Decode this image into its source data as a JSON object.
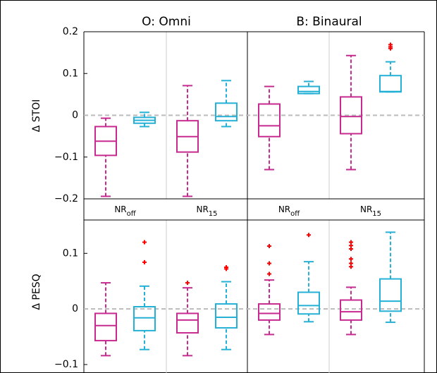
{
  "chart_data": [
    {
      "type": "box",
      "titles": [
        "O: Omni",
        "B: Binaural"
      ],
      "y_label": "Δ STOI",
      "categories": [
        {
          "text": "NR",
          "sub": "off"
        },
        {
          "text": "NR",
          "sub": "15"
        },
        {
          "text": "NR",
          "sub": "off"
        },
        {
          "text": "NR",
          "sub": "15"
        }
      ],
      "ylim": [
        -0.2,
        0.2
      ],
      "yticks": [
        {
          "value": -0.2,
          "label": "−0.2"
        },
        {
          "value": -0.1,
          "label": "−0.1"
        },
        0,
        0.1,
        0.2
      ],
      "series": [
        {
          "color": "#c72a8e",
          "boxes": [
            {
              "low": -0.194,
              "q1": -0.096,
              "median": -0.062,
              "q3": -0.027,
              "high": -0.007,
              "outliers": []
            },
            {
              "low": -0.194,
              "q1": -0.088,
              "median": -0.051,
              "q3": -0.013,
              "high": 0.071,
              "outliers": []
            },
            {
              "low": -0.13,
              "q1": -0.051,
              "median": -0.025,
              "q3": 0.027,
              "high": 0.069,
              "outliers": []
            },
            {
              "low": -0.13,
              "q1": -0.044,
              "median": -0.003,
              "q3": 0.044,
              "high": 0.143,
              "outliers": []
            }
          ]
        },
        {
          "color": "#25b1d6",
          "boxes": [
            {
              "low": -0.027,
              "q1": -0.019,
              "median": -0.012,
              "q3": -0.005,
              "high": 0.007,
              "outliers": []
            },
            {
              "low": -0.027,
              "q1": -0.013,
              "median": -0.003,
              "q3": 0.029,
              "high": 0.083,
              "outliers": []
            },
            {
              "low": 0.052,
              "q1": 0.052,
              "median": 0.057,
              "q3": 0.069,
              "high": 0.081,
              "outliers": []
            },
            {
              "low": 0.056,
              "q1": 0.056,
              "median": 0.057,
              "q3": 0.095,
              "high": 0.128,
              "outliers": [
                0.169,
                0.164,
                0.16
              ]
            }
          ]
        }
      ]
    },
    {
      "type": "box",
      "y_label": "Δ PESQ",
      "ylim": [
        -0.1,
        0.16
      ],
      "yticks": [
        {
          "value": -0.1,
          "label": "−0.1"
        },
        0,
        0.1
      ],
      "series": [
        {
          "color": "#c72a8e",
          "boxes": [
            {
              "low": -0.084,
              "q1": -0.057,
              "median": -0.03,
              "q3": -0.008,
              "high": 0.047,
              "outliers": []
            },
            {
              "low": -0.084,
              "q1": -0.043,
              "median": -0.02,
              "q3": -0.008,
              "high": 0.038,
              "outliers": [
                0.047
              ]
            },
            {
              "low": -0.046,
              "q1": -0.02,
              "median": -0.008,
              "q3": 0.009,
              "high": 0.052,
              "outliers": [
                0.063,
                0.082,
                0.113
              ]
            },
            {
              "low": -0.046,
              "q1": -0.02,
              "median": -0.005,
              "q3": 0.016,
              "high": 0.039,
              "outliers": [
                0.12,
                0.114,
                0.108,
                0.09,
                0.082,
                0.076
              ]
            }
          ]
        },
        {
          "color": "#25b1d6",
          "boxes": [
            {
              "low": -0.073,
              "q1": -0.039,
              "median": -0.016,
              "q3": 0.004,
              "high": 0.041,
              "outliers": [
                0.084,
                0.12
              ]
            },
            {
              "low": -0.073,
              "q1": -0.034,
              "median": -0.015,
              "q3": 0.009,
              "high": 0.049,
              "outliers": [
                0.075,
                0.072
              ]
            },
            {
              "low": -0.023,
              "q1": -0.009,
              "median": 0.006,
              "q3": 0.03,
              "high": 0.085,
              "outliers": [
                0.133
              ]
            },
            {
              "low": -0.024,
              "q1": -0.004,
              "median": 0.014,
              "q3": 0.054,
              "high": 0.138,
              "outliers": []
            }
          ]
        }
      ]
    }
  ]
}
